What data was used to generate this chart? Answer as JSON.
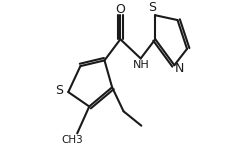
{
  "background_color": "#ffffff",
  "line_color": "#1a1a1a",
  "lw": 1.5,
  "figsize": [
    2.42,
    1.6
  ],
  "dpi": 100,
  "label_S_thio": "S",
  "label_O": "O",
  "label_NH": "NH",
  "label_S_thzl": "S",
  "label_N_thzl": "N",
  "label_CH3": "CH3",
  "fs": 8.0
}
